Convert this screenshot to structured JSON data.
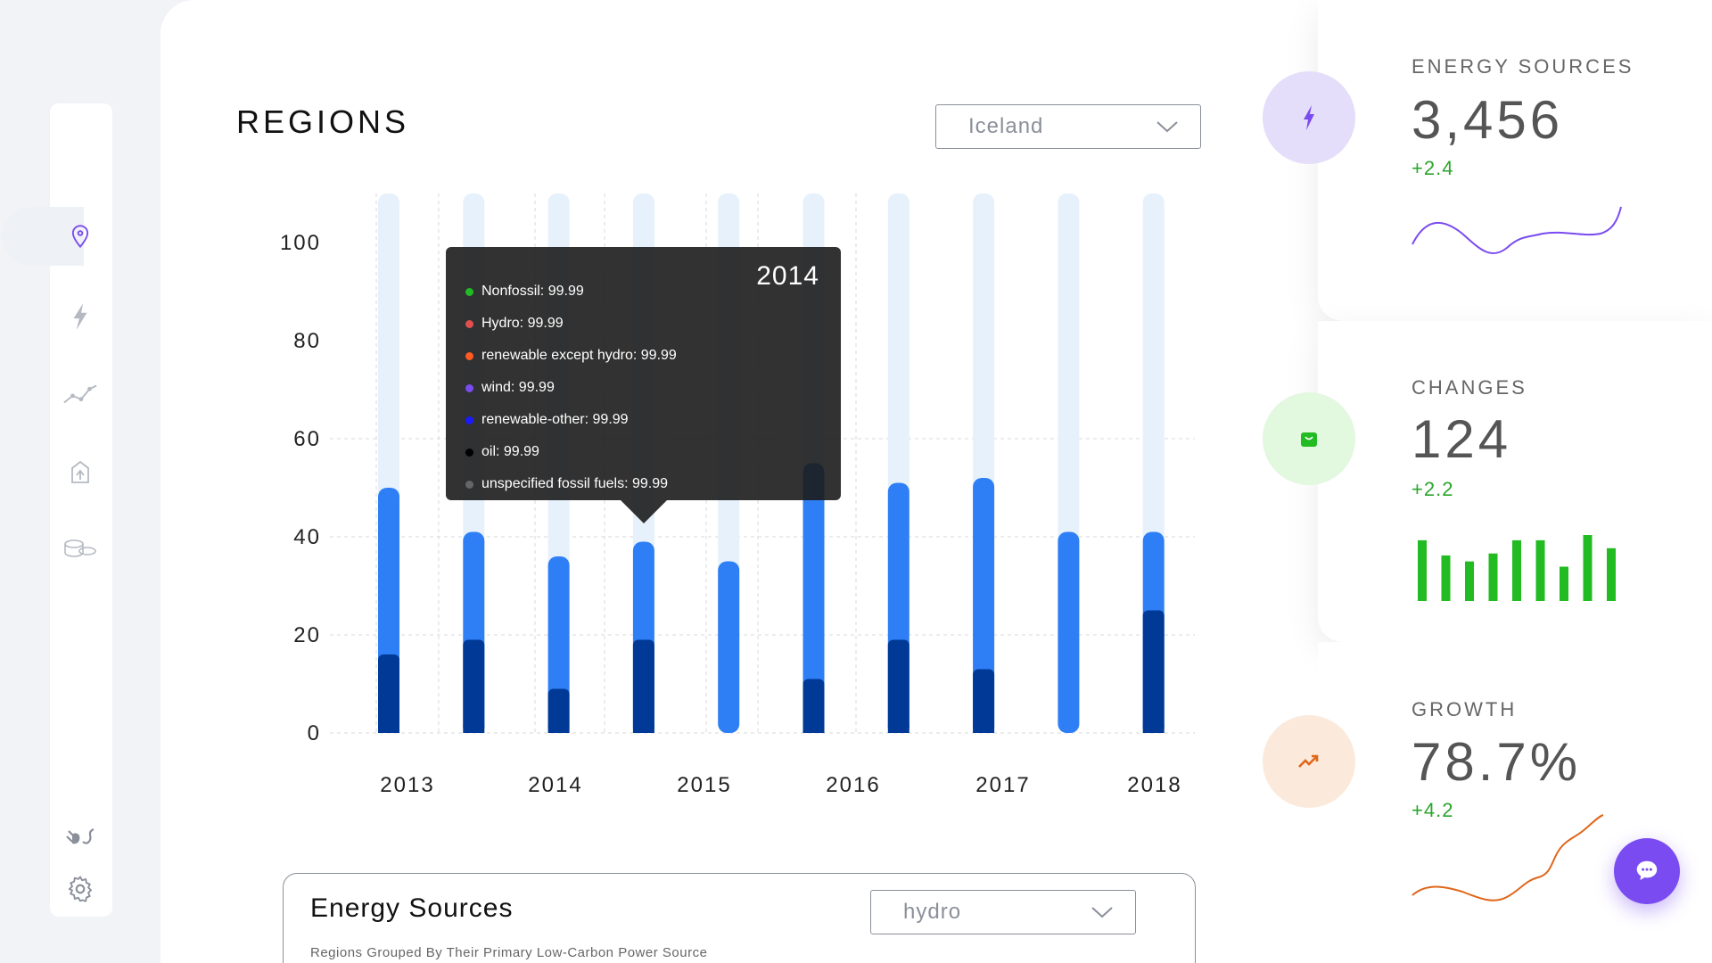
{
  "sidebar": {
    "items": [
      {
        "icon": "map-pin-icon",
        "active": true
      },
      {
        "icon": "lightning-icon"
      },
      {
        "icon": "trend-icon"
      },
      {
        "icon": "recycle-icon"
      },
      {
        "icon": "coins-icon"
      }
    ],
    "bottom": [
      {
        "icon": "plug-icon"
      },
      {
        "icon": "gear-icon"
      }
    ]
  },
  "regions": {
    "title": "REGIONS",
    "country_select": "Iceland"
  },
  "tooltip": {
    "year": "2014",
    "items": [
      {
        "label": "Nonfossil: 99.99",
        "color": "#22bb22"
      },
      {
        "label": "Hydro: 99.99",
        "color": "#e05050"
      },
      {
        "label": "renewable except hydro: 99.99",
        "color": "#ff5a1f"
      },
      {
        "label": "wind: 99.99",
        "color": "#7a4bf0"
      },
      {
        "label": "renewable-other: 99.99",
        "color": "#1a1aff"
      },
      {
        "label": "oil: 99.99",
        "color": "#000000"
      },
      {
        "label": "unspecified fossil fuels: 99.99",
        "color": "#666666"
      }
    ]
  },
  "chart_data": {
    "type": "bar",
    "stacked": true,
    "yticks": [
      "100",
      "80",
      "60",
      "40",
      "20",
      "0"
    ],
    "ylim": [
      0,
      110
    ],
    "xlabels": [
      "2013",
      "2014",
      "2015",
      "2016",
      "2017",
      "2018"
    ],
    "bars": [
      {
        "dark": 16,
        "mid": 34
      },
      {
        "dark": 19,
        "mid": 22
      },
      {
        "dark": 9,
        "mid": 27
      },
      {
        "dark": 19,
        "mid": 20
      },
      {
        "dark": 0,
        "mid": 35
      },
      {
        "dark": 11,
        "mid": 44
      },
      {
        "dark": 19,
        "mid": 32
      },
      {
        "dark": 13,
        "mid": 39
      },
      {
        "dark": 0,
        "mid": 41
      },
      {
        "dark": 25,
        "mid": 16
      }
    ],
    "colors": {
      "dark": "#003a96",
      "mid": "#2e7ff5",
      "bg": "#e6f1fc"
    }
  },
  "energy_sources": {
    "title": "Energy Sources",
    "select": "hydro",
    "subtitle": "Regions Grouped By Their Primary Low-Carbon Power Source"
  },
  "stats": [
    {
      "label": "ENERGY SOURCES",
      "value": "3,456",
      "delta": "+2.4",
      "icon": "lightning-icon",
      "circle": "#e4defa",
      "icon_color": "#7a4bf0"
    },
    {
      "label": "CHANGES",
      "value": "124",
      "delta": "+2.2",
      "icon": "shopping-bag-icon",
      "circle": "#e2f8df",
      "icon_color": "#22bb22"
    },
    {
      "label": "GROWTH",
      "value": "78.7%",
      "delta": "+4.2",
      "icon": "trend-up-icon",
      "circle": "#fbeadb",
      "icon_color": "#e0661a"
    }
  ],
  "changes_bars": [
    0.92,
    0.69,
    0.6,
    0.72,
    0.92,
    0.92,
    0.52,
    1.0,
    0.8
  ]
}
